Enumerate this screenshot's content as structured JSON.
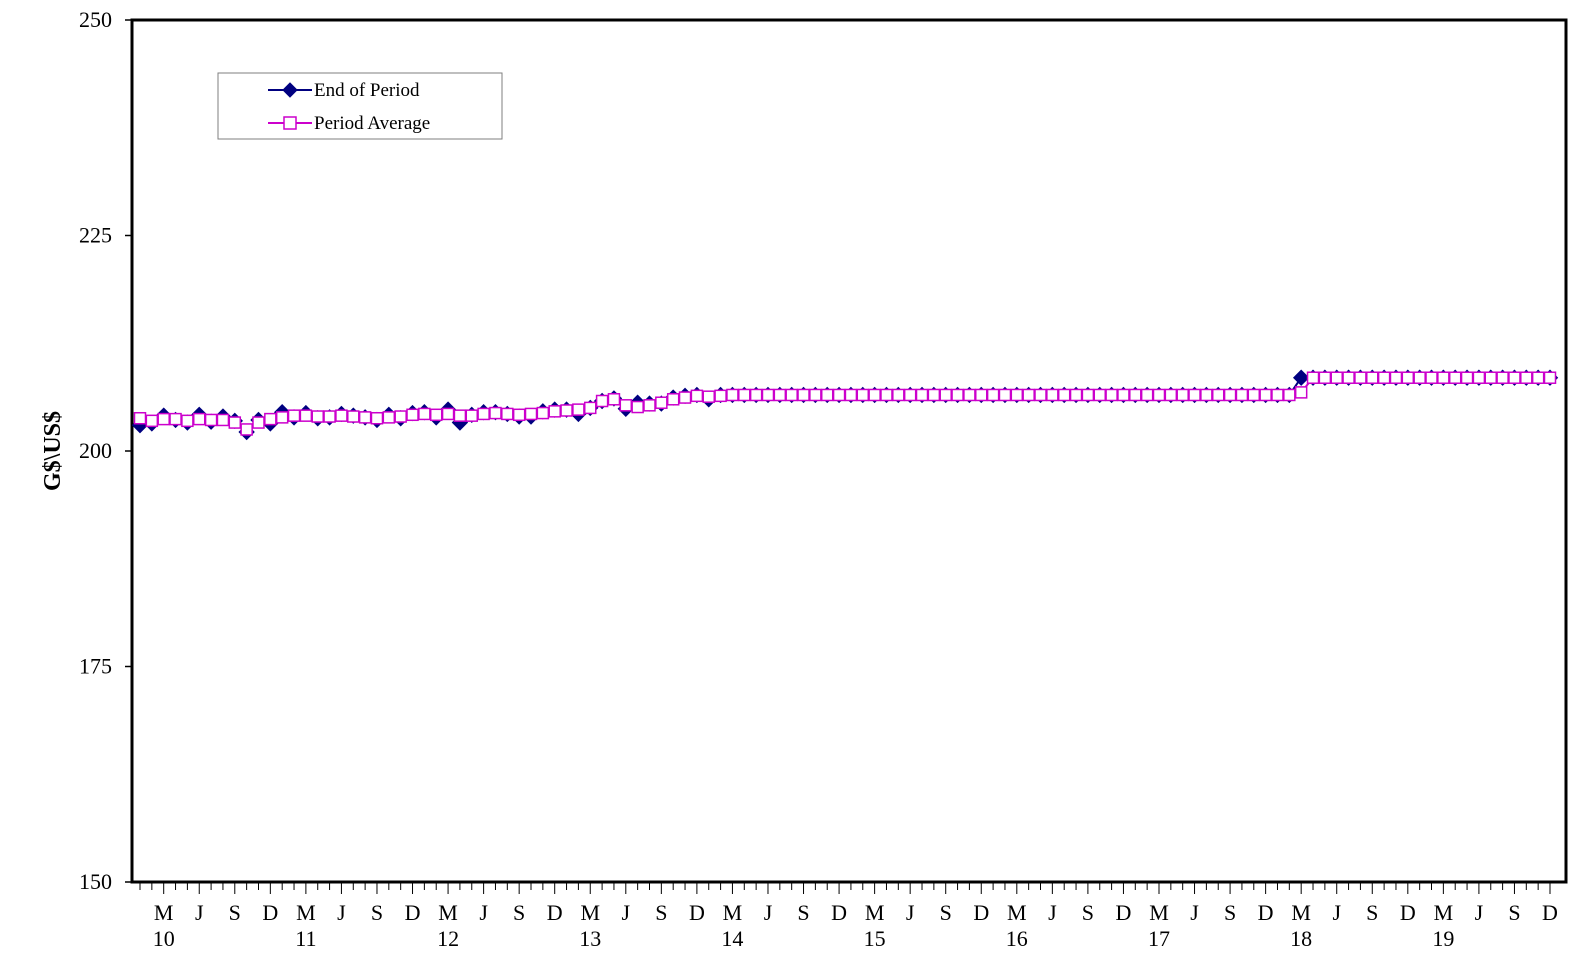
{
  "chart_data": {
    "type": "line",
    "title": "",
    "xlabel": "",
    "ylabel": "G$\\US$",
    "ylim": [
      150,
      250
    ],
    "yticks": [
      150,
      175,
      200,
      225,
      250
    ],
    "grid": false,
    "legend_position": "top-left",
    "x_month_labels": [
      "M",
      "J",
      "S",
      "D",
      "M",
      "J",
      "S",
      "D",
      "M",
      "J",
      "S",
      "D",
      "M",
      "J",
      "S",
      "D",
      "M",
      "J",
      "S",
      "D",
      "M",
      "J",
      "S",
      "D",
      "M",
      "J",
      "S",
      "D",
      "M",
      "J",
      "S",
      "D",
      "M",
      "J",
      "S",
      "D",
      "M",
      "J",
      "S",
      "D"
    ],
    "x_year_labels": [
      "10",
      "11",
      "12",
      "13",
      "14",
      "15",
      "16",
      "17",
      "18",
      "19"
    ],
    "x_start": "2010-01",
    "x_end": "2019-12",
    "series": [
      {
        "name": "End of Period",
        "color": "#000080",
        "marker": "diamond-filled",
        "values": [
          203.0,
          203.2,
          204.1,
          203.6,
          203.3,
          204.2,
          203.4,
          204.0,
          203.5,
          202.2,
          203.6,
          203.2,
          204.5,
          203.9,
          204.4,
          203.8,
          203.9,
          204.3,
          204.1,
          203.9,
          203.6,
          204.2,
          203.8,
          204.4,
          204.5,
          203.9,
          204.8,
          203.3,
          204.2,
          204.5,
          204.5,
          204.3,
          204.0,
          204.0,
          204.6,
          204.8,
          204.8,
          204.3,
          205.0,
          205.8,
          206.1,
          204.9,
          205.6,
          205.5,
          205.5,
          206.2,
          206.4,
          206.5,
          206.0,
          206.5,
          206.5,
          206.5,
          206.5,
          206.5,
          206.5,
          206.5,
          206.5,
          206.5,
          206.5,
          206.5,
          206.5,
          206.5,
          206.5,
          206.5,
          206.5,
          206.5,
          206.5,
          206.5,
          206.5,
          206.5,
          206.5,
          206.5,
          206.5,
          206.5,
          206.5,
          206.5,
          206.5,
          206.5,
          206.5,
          206.5,
          206.5,
          206.5,
          206.5,
          206.5,
          206.5,
          206.5,
          206.5,
          206.5,
          206.5,
          206.5,
          206.5,
          206.5,
          206.5,
          206.5,
          206.5,
          206.5,
          206.5,
          206.5,
          208.5,
          208.5,
          208.5,
          208.5,
          208.5,
          208.5,
          208.5,
          208.5,
          208.5,
          208.5,
          208.5,
          208.5,
          208.5,
          208.5,
          208.5,
          208.5,
          208.5,
          208.5,
          208.5,
          208.5,
          208.5,
          208.5
        ]
      },
      {
        "name": "Period Average",
        "color": "#cc00cc",
        "marker": "square-open",
        "values": [
          203.8,
          203.5,
          203.7,
          203.7,
          203.5,
          203.7,
          203.6,
          203.6,
          203.3,
          202.5,
          203.3,
          203.7,
          203.9,
          204.1,
          204.1,
          204.0,
          204.0,
          204.1,
          204.0,
          203.9,
          203.8,
          203.9,
          204.0,
          204.2,
          204.3,
          204.2,
          204.3,
          204.1,
          204.1,
          204.3,
          204.4,
          204.3,
          204.2,
          204.3,
          204.4,
          204.6,
          204.7,
          204.8,
          205.0,
          205.8,
          206.0,
          205.3,
          205.1,
          205.3,
          205.6,
          206.0,
          206.2,
          206.4,
          206.3,
          206.4,
          206.5,
          206.5,
          206.5,
          206.5,
          206.5,
          206.5,
          206.5,
          206.5,
          206.5,
          206.5,
          206.5,
          206.5,
          206.5,
          206.5,
          206.5,
          206.5,
          206.5,
          206.5,
          206.5,
          206.5,
          206.5,
          206.5,
          206.5,
          206.5,
          206.5,
          206.5,
          206.5,
          206.5,
          206.5,
          206.5,
          206.5,
          206.5,
          206.5,
          206.5,
          206.5,
          206.5,
          206.5,
          206.5,
          206.5,
          206.5,
          206.5,
          206.5,
          206.5,
          206.5,
          206.5,
          206.5,
          206.5,
          206.5,
          206.8,
          208.5,
          208.5,
          208.5,
          208.5,
          208.5,
          208.5,
          208.5,
          208.5,
          208.5,
          208.5,
          208.5,
          208.5,
          208.5,
          208.5,
          208.5,
          208.5,
          208.5,
          208.5,
          208.5,
          208.5,
          208.5
        ]
      }
    ]
  }
}
